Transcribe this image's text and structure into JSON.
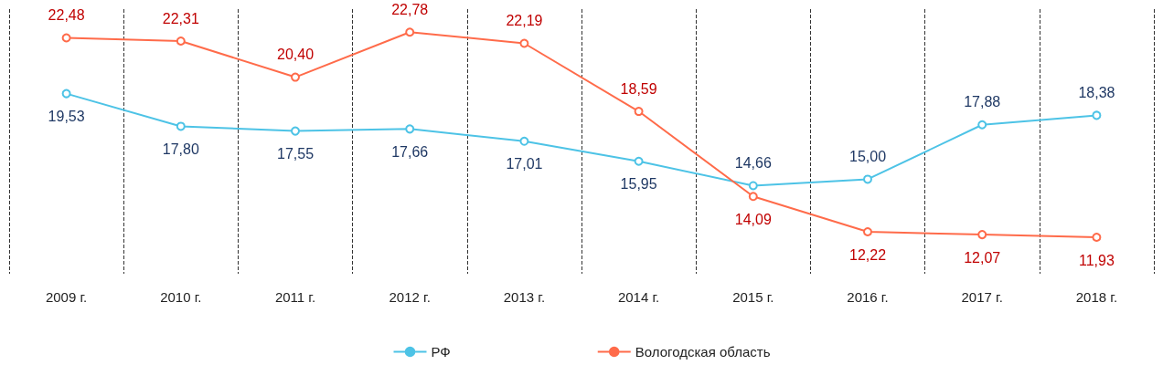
{
  "chart_data": {
    "type": "line",
    "categories": [
      "2009 г.",
      "2010 г.",
      "2011 г.",
      "2012 г.",
      "2013 г.",
      "2014 г.",
      "2015 г.",
      "2016 г.",
      "2017 г.",
      "2018 г."
    ],
    "series": [
      {
        "name": "РФ",
        "color": "#4dc3e6",
        "values": [
          19.53,
          17.8,
          17.55,
          17.66,
          17.01,
          15.95,
          14.66,
          15.0,
          17.88,
          18.38
        ],
        "value_labels": [
          "19,53",
          "17,80",
          "17,55",
          "17,66",
          "17,01",
          "15,95",
          "14,66",
          "15,00",
          "17,88",
          "18,38"
        ]
      },
      {
        "name": "Вологодская область",
        "color": "#ff6b4a",
        "values": [
          22.48,
          22.31,
          20.4,
          22.78,
          22.19,
          18.59,
          14.09,
          12.22,
          12.07,
          11.93
        ],
        "value_labels": [
          "22,48",
          "22,31",
          "20,40",
          "22,78",
          "22,19",
          "18,59",
          "14,09",
          "12,22",
          "12,07",
          "11,93"
        ]
      }
    ],
    "marker": "circle",
    "line_style": "solid",
    "grid": "x",
    "legend": "bottom"
  }
}
